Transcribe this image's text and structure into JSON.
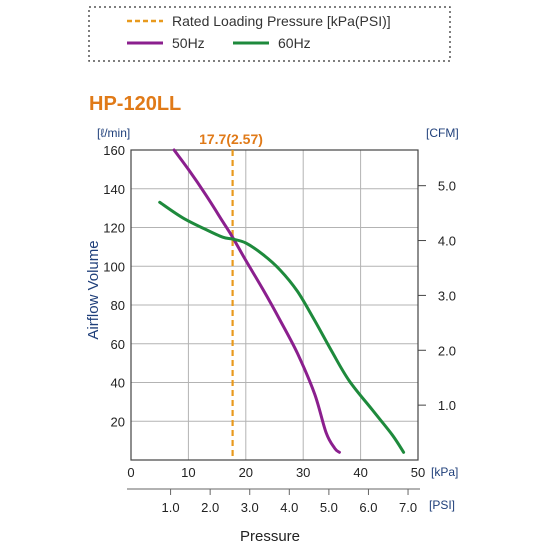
{
  "chart_data": {
    "type": "line",
    "title": "HP-120LL",
    "ylabel": "Airflow Volume",
    "xlabel": "Pressure",
    "ylim": [
      0,
      160
    ],
    "xlim": [
      0,
      50
    ],
    "grid": true,
    "legend_position": "top",
    "units": {
      "y_left": "[ℓ/min]",
      "y_right": "[CFM]",
      "x_kpa": "[kPa]",
      "x_psi": "[PSI]"
    },
    "y_ticks": [
      "20",
      "40",
      "60",
      "80",
      "100",
      "120",
      "140",
      "160"
    ],
    "y_tick_values": [
      20,
      40,
      60,
      80,
      100,
      120,
      140,
      160
    ],
    "x_ticks_kpa": [
      "0",
      "10",
      "20",
      "30",
      "40",
      "50"
    ],
    "x_ticks_kpa_values": [
      0,
      10,
      20,
      30,
      40,
      50
    ],
    "x_ticks_psi": [
      "1.0",
      "2.0",
      "3.0",
      "4.0",
      "5.0",
      "6.0",
      "7.0"
    ],
    "x_ticks_psi_values": [
      1,
      2,
      3,
      4,
      5,
      6,
      7
    ],
    "y_ticks_cfm": [
      "1.0",
      "2.0",
      "3.0",
      "4.0",
      "5.0"
    ],
    "y_ticks_cfm_values": [
      1,
      2,
      3,
      4,
      5
    ],
    "legend": {
      "rated": "Rated Loading Pressure [kPa(PSI)]",
      "s50": "50Hz",
      "s60": "60Hz"
    },
    "rated_pressure": {
      "label": "17.7(2.57)",
      "x": 17.7
    },
    "series": [
      {
        "name": "50Hz",
        "color": "#8b1f8e",
        "x": [
          7.5,
          10,
          13,
          16,
          17.7,
          20,
          23,
          26,
          29,
          32,
          34,
          35.5,
          36.3
        ],
        "y": [
          160,
          150,
          137,
          123,
          115,
          103,
          88,
          72,
          55,
          34,
          14,
          6,
          4
        ]
      },
      {
        "name": "60Hz",
        "color": "#1e8a3c",
        "x": [
          5,
          9,
          13,
          16,
          17.7,
          20,
          23,
          26,
          29,
          32,
          35,
          38,
          42,
          45.5,
          47.5
        ],
        "y": [
          133,
          125,
          119,
          115,
          114,
          112,
          106,
          98,
          87,
          72,
          56,
          41,
          26,
          13,
          4
        ]
      }
    ],
    "colors": {
      "rated": "#e89a1e",
      "title": "#e07a18",
      "axis_blue": "#1f3f7a",
      "grid": "#b3b3b3"
    }
  }
}
